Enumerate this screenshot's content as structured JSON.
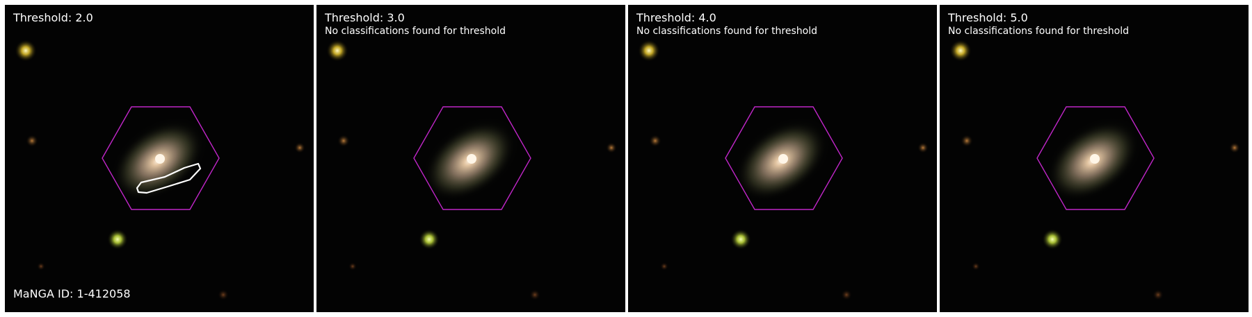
{
  "panels": [
    {
      "title": "Threshold: 2.0",
      "note": "",
      "footer": "MaNGA ID: 1-412058",
      "has_contour": true
    },
    {
      "title": "Threshold: 3.0",
      "note": "No classifications found for threshold",
      "footer": "",
      "has_contour": false
    },
    {
      "title": "Threshold: 4.0",
      "note": "No classifications found for threshold",
      "footer": "",
      "has_contour": false
    },
    {
      "title": "Threshold: 5.0",
      "note": "No classifications found for threshold",
      "footer": "",
      "has_contour": false
    }
  ],
  "colors": {
    "background": "#030303",
    "ifu_hexagon": "#c026c8",
    "contour": "#ffffff",
    "text": "#ffffff"
  },
  "icons": [
    "ifu-hexagon",
    "galaxy",
    "star",
    "classification-contour"
  ]
}
